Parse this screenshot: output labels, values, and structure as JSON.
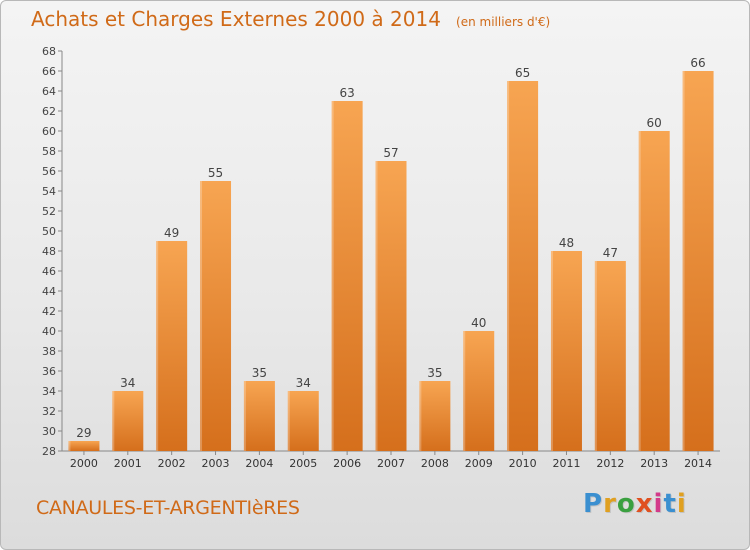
{
  "header": {
    "title": "Achats et Charges Externes 2000 à 2014",
    "unit": "(en milliers d'€)"
  },
  "footer": {
    "commune": "CANAULES-ET-ARGENTIèRES",
    "logo": "Proxiti"
  },
  "colors": {
    "accent": "#d06a18",
    "bar_top": "#f7a552",
    "bar_bottom": "#d56f1c"
  },
  "chart_data": {
    "type": "bar",
    "categories": [
      "2000",
      "2001",
      "2002",
      "2003",
      "2004",
      "2005",
      "2006",
      "2007",
      "2008",
      "2009",
      "2010",
      "2011",
      "2012",
      "2013",
      "2014"
    ],
    "values": [
      29,
      34,
      49,
      55,
      35,
      34,
      63,
      57,
      35,
      40,
      65,
      48,
      47,
      60,
      66
    ],
    "ylim": [
      28,
      68
    ],
    "ytick_step": 2,
    "grid": false,
    "legend": "none"
  }
}
